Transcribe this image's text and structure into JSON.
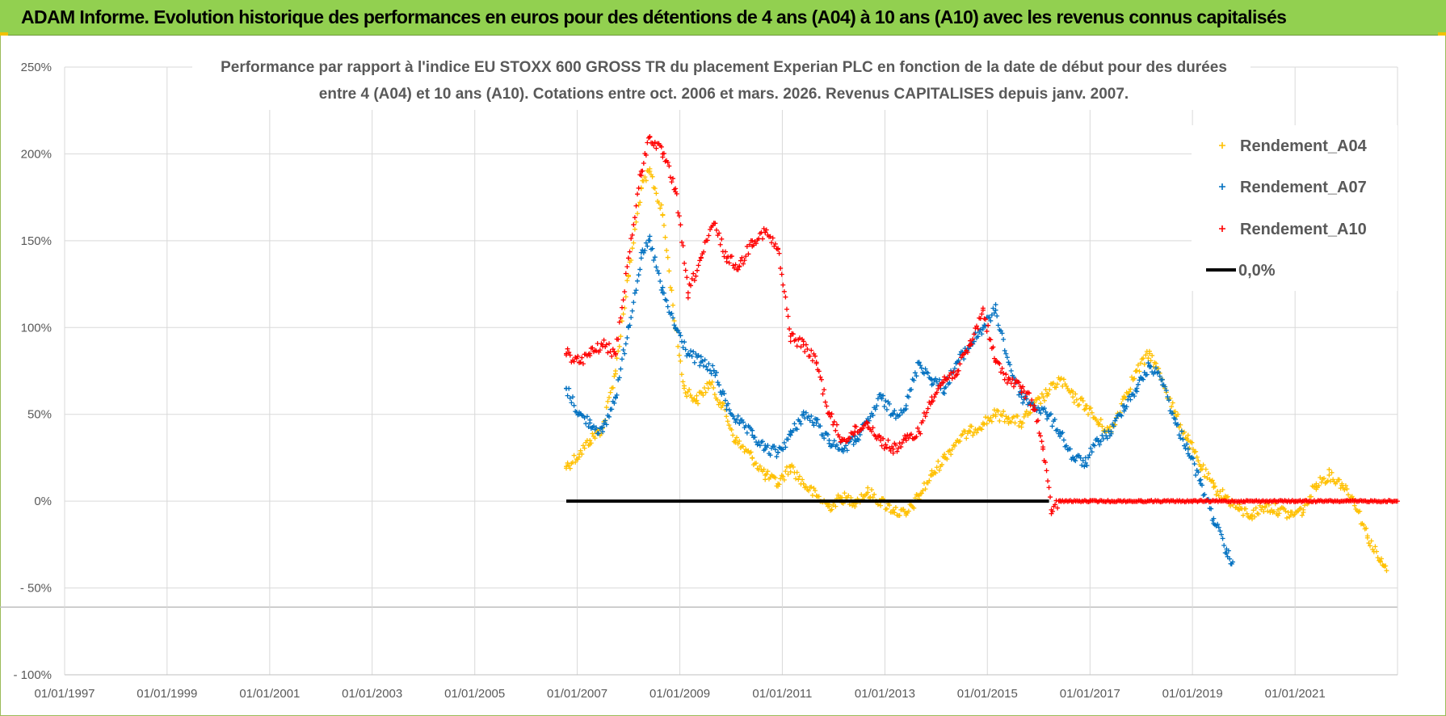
{
  "banner": {
    "title": "ADAM Informe. Evolution historique des performances en euros pour des détentions de 4 ans (A04) à 10 ans (A10) avec les revenus connus capitalisés",
    "bg_color": "#92d050"
  },
  "chart_data": {
    "type": "scatter",
    "title_lines": [
      "Performance par rapport à l'indice EU STOXX 600 GROSS TR  du placement Experian PLC en fonction de la date de début pour des durées",
      "entre 4 (A04) et 10 ans (A10).  Cotations entre oct. 2006 et mars. 2026. Revenus CAPITALISES depuis janv. 2007."
    ],
    "x_axis": {
      "type": "date",
      "min": "1997-01-01",
      "max": "2023-01-01",
      "tick_labels": [
        "01/01/1997",
        "01/01/1999",
        "01/01/2001",
        "01/01/2003",
        "01/01/2005",
        "01/01/2007",
        "01/01/2009",
        "01/01/2011",
        "01/01/2013",
        "01/01/2015",
        "01/01/2017",
        "01/01/2019",
        "01/01/2021"
      ]
    },
    "y_axis": {
      "min": -100,
      "max": 250,
      "unit": "%",
      "ticks": [
        250,
        200,
        150,
        100,
        50,
        0,
        -50,
        -100
      ],
      "tick_labels": [
        "250%",
        "200%",
        "150%",
        "100%",
        "50%",
        "0%",
        "- 50%",
        "- 100%"
      ]
    },
    "grid": true,
    "legend_position": "top-right",
    "series": [
      {
        "name": "Rendement_A04",
        "color": "#ffc000",
        "marker": "+",
        "points": [
          [
            "2006-10-15",
            20
          ],
          [
            "2007-01-15",
            27
          ],
          [
            "2007-04-01",
            35
          ],
          [
            "2007-07-01",
            42
          ],
          [
            "2007-10-01",
            75
          ],
          [
            "2008-01-01",
            130
          ],
          [
            "2008-04-01",
            180
          ],
          [
            "2008-06-01",
            190
          ],
          [
            "2008-09-01",
            165
          ],
          [
            "2008-12-01",
            100
          ],
          [
            "2009-02-01",
            65
          ],
          [
            "2009-05-01",
            58
          ],
          [
            "2009-08-01",
            68
          ],
          [
            "2009-11-01",
            55
          ],
          [
            "2010-02-01",
            35
          ],
          [
            "2010-06-01",
            25
          ],
          [
            "2010-09-01",
            15
          ],
          [
            "2010-12-01",
            10
          ],
          [
            "2011-03-01",
            20
          ],
          [
            "2011-06-01",
            10
          ],
          [
            "2011-09-01",
            3
          ],
          [
            "2011-12-01",
            -3
          ],
          [
            "2012-03-01",
            2
          ],
          [
            "2012-06-01",
            0
          ],
          [
            "2012-09-01",
            5
          ],
          [
            "2012-12-01",
            0
          ],
          [
            "2013-03-01",
            -5
          ],
          [
            "2013-06-01",
            -8
          ],
          [
            "2013-09-01",
            3
          ],
          [
            "2013-12-01",
            15
          ],
          [
            "2014-03-01",
            25
          ],
          [
            "2014-06-01",
            35
          ],
          [
            "2014-09-01",
            40
          ],
          [
            "2014-12-01",
            45
          ],
          [
            "2015-03-01",
            50
          ],
          [
            "2015-06-01",
            48
          ],
          [
            "2015-09-01",
            45
          ],
          [
            "2015-12-01",
            55
          ],
          [
            "2016-03-01",
            62
          ],
          [
            "2016-06-01",
            70
          ],
          [
            "2016-09-01",
            60
          ],
          [
            "2016-12-01",
            55
          ],
          [
            "2017-03-01",
            45
          ],
          [
            "2017-06-01",
            40
          ],
          [
            "2017-09-01",
            60
          ],
          [
            "2017-12-01",
            75
          ],
          [
            "2018-03-01",
            85
          ],
          [
            "2018-06-01",
            70
          ],
          [
            "2018-09-01",
            50
          ],
          [
            "2018-12-01",
            35
          ],
          [
            "2019-03-01",
            20
          ],
          [
            "2019-06-01",
            8
          ],
          [
            "2019-09-01",
            2
          ],
          [
            "2019-12-01",
            -5
          ],
          [
            "2020-03-01",
            -8
          ],
          [
            "2020-06-01",
            -3
          ],
          [
            "2020-09-01",
            -5
          ],
          [
            "2020-12-01",
            -8
          ],
          [
            "2021-03-01",
            -5
          ],
          [
            "2021-06-01",
            10
          ],
          [
            "2021-09-01",
            15
          ],
          [
            "2021-12-01",
            10
          ],
          [
            "2022-03-01",
            0
          ],
          [
            "2022-06-01",
            -20
          ],
          [
            "2022-09-01",
            -35
          ],
          [
            "2022-10-15",
            -40
          ]
        ]
      },
      {
        "name": "Rendement_A07",
        "color": "#0070c0",
        "marker": "+",
        "points": [
          [
            "2006-10-15",
            65
          ],
          [
            "2007-01-15",
            50
          ],
          [
            "2007-04-01",
            45
          ],
          [
            "2007-07-01",
            40
          ],
          [
            "2007-10-01",
            60
          ],
          [
            "2008-01-01",
            100
          ],
          [
            "2008-04-01",
            140
          ],
          [
            "2008-06-01",
            150
          ],
          [
            "2008-09-01",
            120
          ],
          [
            "2008-12-01",
            100
          ],
          [
            "2009-03-01",
            85
          ],
          [
            "2009-06-01",
            80
          ],
          [
            "2009-09-01",
            75
          ],
          [
            "2009-12-01",
            55
          ],
          [
            "2010-03-01",
            45
          ],
          [
            "2010-06-01",
            38
          ],
          [
            "2010-09-01",
            30
          ],
          [
            "2010-12-01",
            28
          ],
          [
            "2011-03-01",
            38
          ],
          [
            "2011-06-01",
            50
          ],
          [
            "2011-09-01",
            45
          ],
          [
            "2011-12-01",
            35
          ],
          [
            "2012-03-01",
            30
          ],
          [
            "2012-06-01",
            35
          ],
          [
            "2012-09-01",
            45
          ],
          [
            "2012-12-01",
            60
          ],
          [
            "2013-03-01",
            50
          ],
          [
            "2013-06-01",
            55
          ],
          [
            "2013-09-01",
            80
          ],
          [
            "2013-12-01",
            70
          ],
          [
            "2014-03-01",
            65
          ],
          [
            "2014-06-01",
            80
          ],
          [
            "2014-09-01",
            90
          ],
          [
            "2014-12-01",
            100
          ],
          [
            "2015-03-01",
            110
          ],
          [
            "2015-06-01",
            80
          ],
          [
            "2015-09-01",
            60
          ],
          [
            "2015-12-01",
            55
          ],
          [
            "2016-03-01",
            50
          ],
          [
            "2016-06-01",
            40
          ],
          [
            "2016-09-01",
            25
          ],
          [
            "2016-12-01",
            22
          ],
          [
            "2017-03-01",
            35
          ],
          [
            "2017-06-01",
            40
          ],
          [
            "2017-09-01",
            55
          ],
          [
            "2017-12-01",
            65
          ],
          [
            "2018-03-01",
            78
          ],
          [
            "2018-06-01",
            70
          ],
          [
            "2018-09-01",
            45
          ],
          [
            "2018-12-01",
            30
          ],
          [
            "2019-03-01",
            10
          ],
          [
            "2019-06-01",
            -10
          ],
          [
            "2019-09-01",
            -30
          ],
          [
            "2019-10-15",
            -35
          ]
        ]
      },
      {
        "name": "Rendement_A10",
        "color": "#ff0000",
        "marker": "+",
        "points": [
          [
            "2006-10-15",
            85
          ],
          [
            "2007-01-15",
            80
          ],
          [
            "2007-04-01",
            85
          ],
          [
            "2007-07-01",
            90
          ],
          [
            "2007-10-01",
            85
          ],
          [
            "2008-01-01",
            140
          ],
          [
            "2008-04-01",
            190
          ],
          [
            "2008-06-01",
            210
          ],
          [
            "2008-09-01",
            200
          ],
          [
            "2008-12-01",
            180
          ],
          [
            "2009-03-01",
            120
          ],
          [
            "2009-06-01",
            140
          ],
          [
            "2009-09-01",
            160
          ],
          [
            "2009-12-01",
            140
          ],
          [
            "2010-03-01",
            135
          ],
          [
            "2010-06-01",
            150
          ],
          [
            "2010-09-01",
            155
          ],
          [
            "2010-12-01",
            145
          ],
          [
            "2011-03-01",
            95
          ],
          [
            "2011-06-01",
            90
          ],
          [
            "2011-09-01",
            80
          ],
          [
            "2011-12-01",
            50
          ],
          [
            "2012-03-01",
            35
          ],
          [
            "2012-06-01",
            40
          ],
          [
            "2012-09-01",
            45
          ],
          [
            "2012-12-01",
            35
          ],
          [
            "2013-03-01",
            30
          ],
          [
            "2013-06-01",
            35
          ],
          [
            "2013-09-01",
            40
          ],
          [
            "2013-12-01",
            60
          ],
          [
            "2014-03-01",
            70
          ],
          [
            "2014-06-01",
            75
          ],
          [
            "2014-09-01",
            90
          ],
          [
            "2014-12-01",
            110
          ],
          [
            "2015-03-01",
            80
          ],
          [
            "2015-06-01",
            70
          ],
          [
            "2015-09-01",
            65
          ],
          [
            "2015-12-01",
            55
          ],
          [
            "2016-02-01",
            30
          ],
          [
            "2016-04-01",
            -5
          ],
          [
            "2016-06-01",
            0
          ],
          [
            "2017-01-01",
            0
          ],
          [
            "2018-01-01",
            0
          ],
          [
            "2019-01-01",
            0
          ],
          [
            "2020-01-01",
            0
          ],
          [
            "2021-01-01",
            0
          ],
          [
            "2022-01-01",
            0
          ],
          [
            "2023-01-01",
            0
          ]
        ]
      },
      {
        "name": "0,0%",
        "color": "#000000",
        "marker": "line",
        "points": [
          [
            "2006-10-15",
            0
          ],
          [
            "2016-03-15",
            0
          ]
        ]
      }
    ]
  }
}
